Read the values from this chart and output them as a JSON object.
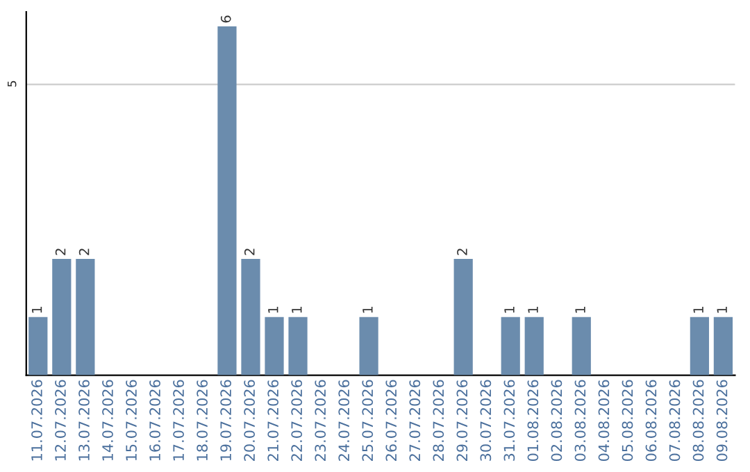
{
  "chart_data": {
    "type": "bar",
    "categories": [
      "11.07.2026",
      "12.07.2026",
      "13.07.2026",
      "14.07.2026",
      "15.07.2026",
      "16.07.2026",
      "17.07.2026",
      "18.07.2026",
      "19.07.2026",
      "20.07.2026",
      "21.07.2026",
      "22.07.2026",
      "23.07.2026",
      "24.07.2026",
      "25.07.2026",
      "26.07.2026",
      "27.07.2026",
      "28.07.2026",
      "29.07.2026",
      "30.07.2026",
      "31.07.2026",
      "01.08.2026",
      "02.08.2026",
      "03.08.2026",
      "04.08.2026",
      "05.08.2026",
      "06.08.2026",
      "07.08.2026",
      "08.08.2026",
      "09.08.2026"
    ],
    "values": [
      1,
      2,
      2,
      0,
      0,
      0,
      0,
      0,
      6,
      2,
      1,
      1,
      0,
      0,
      1,
      0,
      0,
      0,
      2,
      0,
      1,
      1,
      0,
      1,
      0,
      0,
      0,
      0,
      1,
      1
    ],
    "value_labels": [
      "1",
      "2",
      "2",
      null,
      null,
      null,
      null,
      null,
      "6",
      "2",
      "1",
      "1",
      null,
      null,
      "1",
      null,
      null,
      null,
      "2",
      null,
      "1",
      "1",
      null,
      "1",
      null,
      null,
      null,
      null,
      "1",
      "1"
    ],
    "color": "#6b8cad",
    "ylim": [
      0,
      6.25
    ],
    "yticks": [
      5
    ],
    "grid": "y",
    "legend": false
  }
}
